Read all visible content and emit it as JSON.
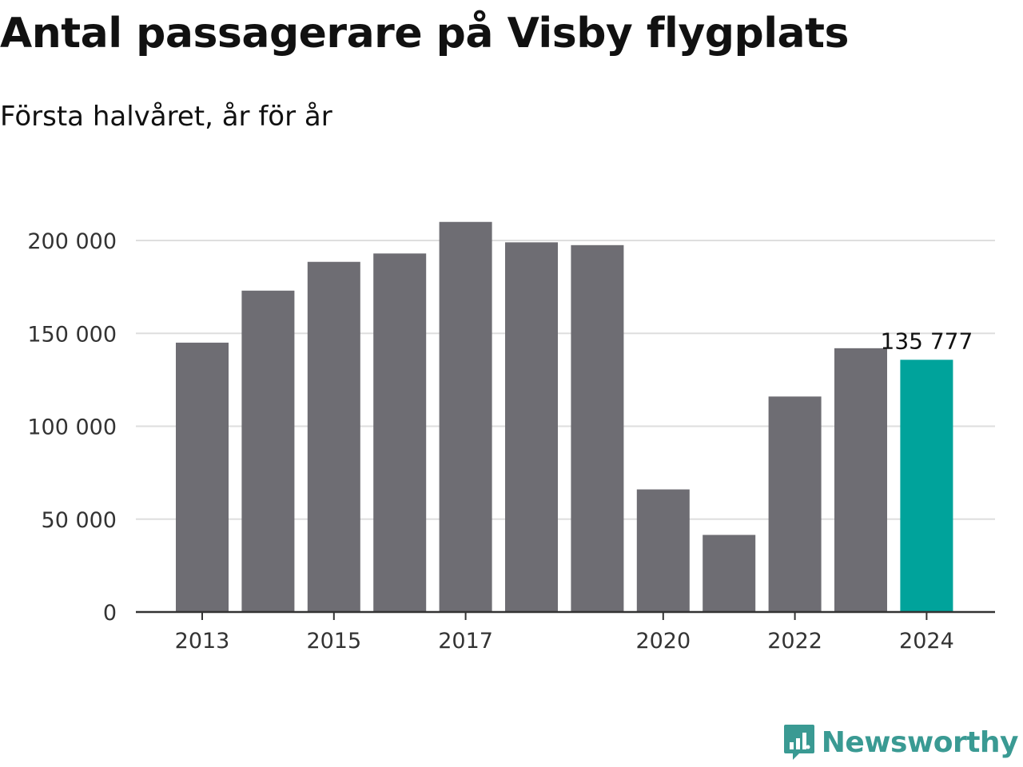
{
  "title": "Antal passagerare på Visby flygplats",
  "subtitle": "Första halvåret, år för år",
  "brand": {
    "name": "Newsworthy",
    "color": "#3a9a93",
    "icon": "bar-chart-speech-bubble-icon"
  },
  "chart_data": {
    "type": "bar",
    "title": "Antal passagerare på Visby flygplats",
    "subtitle": "Första halvåret, år för år",
    "xlabel": "",
    "ylabel": "",
    "categories": [
      "2013",
      "2014",
      "2015",
      "2016",
      "2017",
      "2018",
      "2019",
      "2020",
      "2021",
      "2022",
      "2023",
      "2024"
    ],
    "x_tick_labels": [
      "2013",
      "",
      "2015",
      "",
      "2017",
      "",
      "",
      "2020",
      "",
      "2022",
      "",
      "2024"
    ],
    "values": [
      145000,
      173000,
      188500,
      193000,
      210000,
      199000,
      197500,
      66000,
      41500,
      116000,
      142000,
      135777
    ],
    "ylim": [
      0,
      210000
    ],
    "y_ticks": [
      0,
      50000,
      100000,
      150000,
      200000
    ],
    "y_tick_labels": [
      "0",
      "50 000",
      "100 000",
      "150 000",
      "200 000"
    ],
    "grid": true,
    "colors": {
      "default": "#6e6d73",
      "highlight": "#00a39b"
    },
    "highlight_index": 11,
    "annotations": [
      {
        "index": 11,
        "text": "135 777"
      }
    ]
  }
}
